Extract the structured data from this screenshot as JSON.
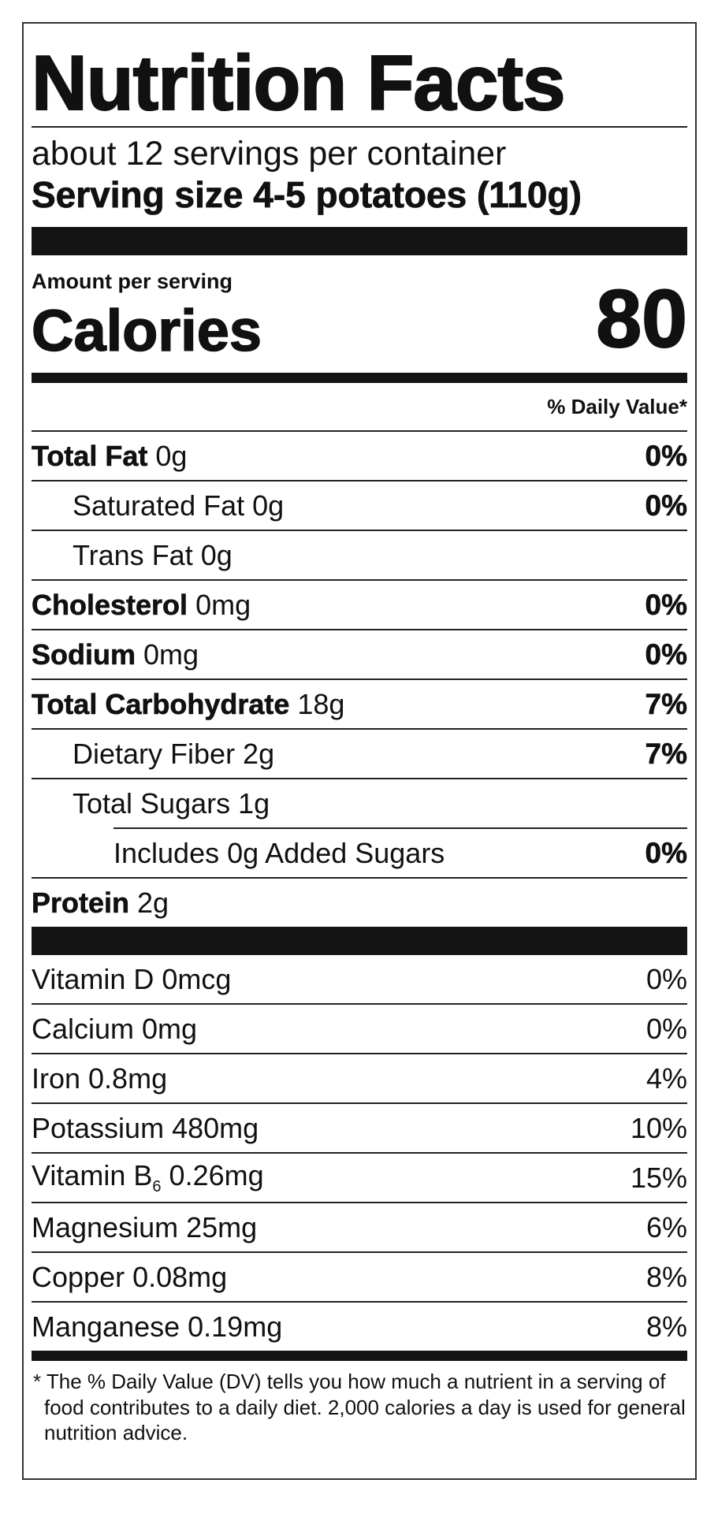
{
  "title": "Nutrition Facts",
  "servings_per_container": "about 12 servings per container",
  "serving_size": "Serving size 4-5 potatoes (110g)",
  "amount_per_serving": "Amount per serving",
  "calories_label": "Calories",
  "calories_value": "80",
  "daily_value_header": "% Daily Value*",
  "nutrients": {
    "total_fat": {
      "name": "Total Fat",
      "amount": "0g",
      "dv": "0%"
    },
    "saturated_fat": {
      "name": "Saturated Fat 0g",
      "dv": "0%"
    },
    "trans_fat": {
      "name": "Trans Fat 0g"
    },
    "cholesterol": {
      "name": "Cholesterol",
      "amount": "0mg",
      "dv": "0%"
    },
    "sodium": {
      "name": "Sodium",
      "amount": "0mg",
      "dv": "0%"
    },
    "total_carbohydrate": {
      "name": "Total Carbohydrate",
      "amount": "18g",
      "dv": "7%"
    },
    "dietary_fiber": {
      "name": "Dietary Fiber 2g",
      "dv": "7%"
    },
    "total_sugars": {
      "name": "Total Sugars 1g"
    },
    "added_sugars": {
      "name": "Includes 0g Added Sugars",
      "dv": "0%"
    },
    "protein": {
      "name": "Protein",
      "amount": "2g"
    }
  },
  "vitamins": {
    "vitamin_d": {
      "name": "Vitamin D 0mcg",
      "dv": "0%"
    },
    "calcium": {
      "name": "Calcium 0mg",
      "dv": "0%"
    },
    "iron": {
      "name": "Iron 0.8mg",
      "dv": "4%"
    },
    "potassium": {
      "name": "Potassium 480mg",
      "dv": "10%"
    },
    "vitamin_b6": {
      "name_prefix": "Vitamin B",
      "subscript": "6",
      "name_suffix": "0.26mg",
      "dv": "15%"
    },
    "magnesium": {
      "name": "Magnesium 25mg",
      "dv": "6%"
    },
    "copper": {
      "name": "Copper 0.08mg",
      "dv": "8%"
    },
    "manganese": {
      "name": "Manganese 0.19mg",
      "dv": "8%"
    }
  },
  "footnote": "* The % Daily Value (DV) tells you how much a nutrient in a serving of food contributes to a daily diet. 2,000 calories a day is used for general nutrition advice."
}
